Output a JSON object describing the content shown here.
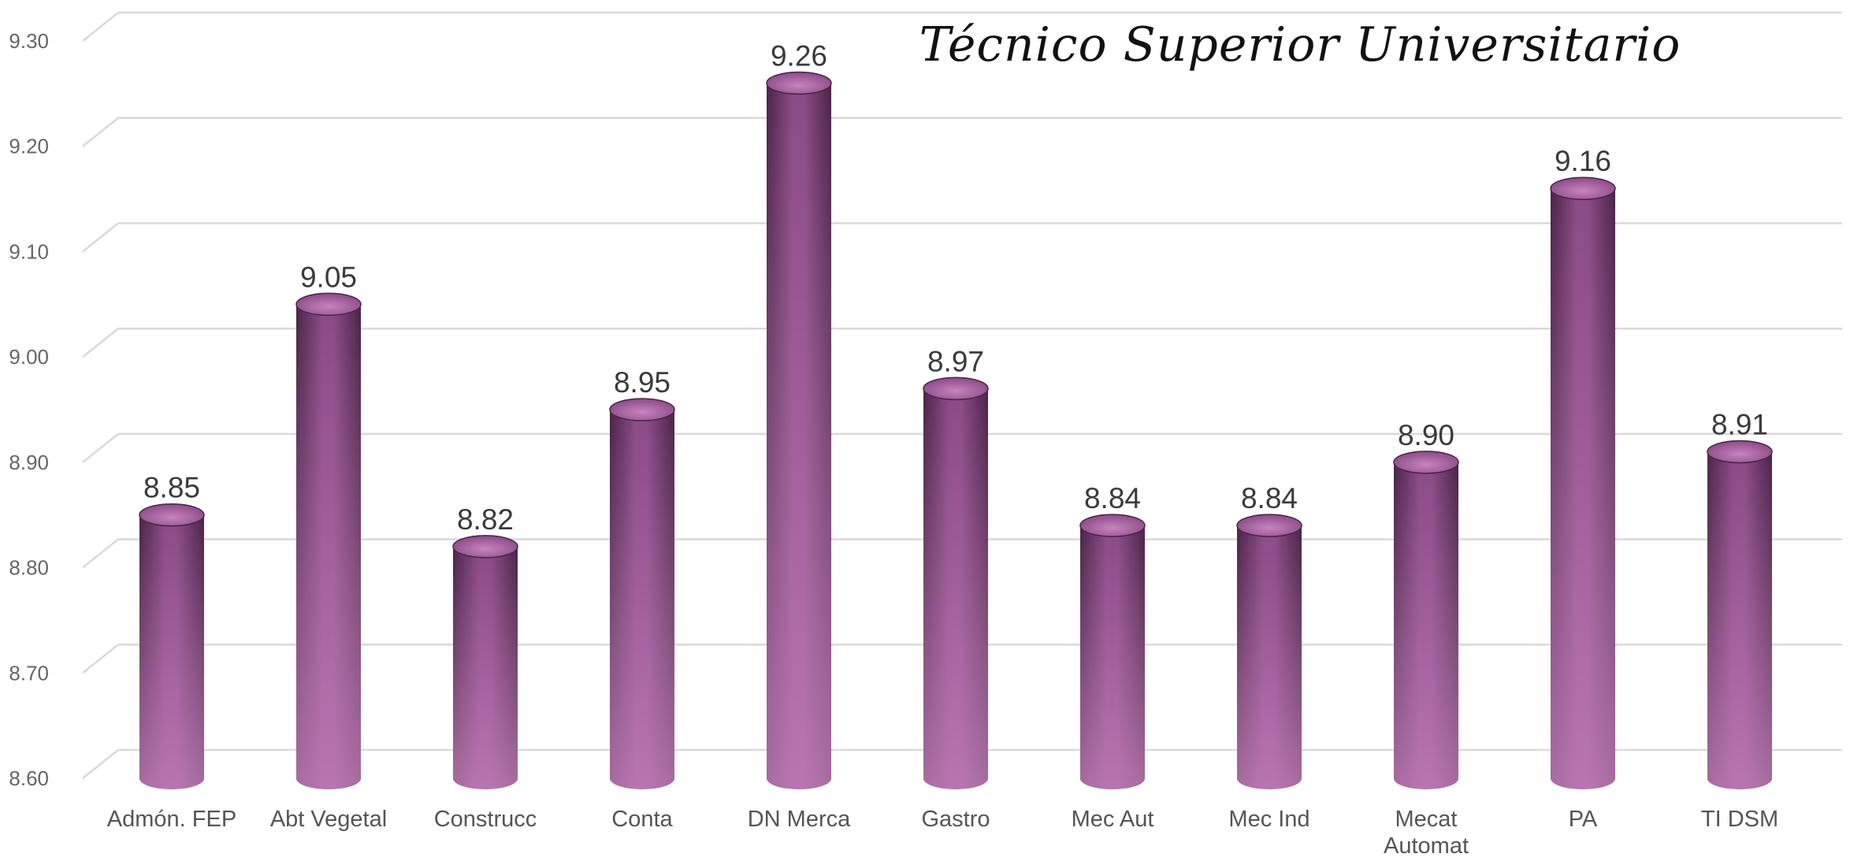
{
  "chart_data": {
    "type": "bar",
    "title": "Técnico Superior Universitario",
    "categories": [
      "Admón. FEP",
      "Abt Vegetal",
      "Construcc",
      "Conta",
      "DN Merca",
      "Gastro",
      "Mec Aut",
      "Mec Ind",
      "Mecat Automat",
      "PA",
      "TI DSM"
    ],
    "values": [
      8.85,
      9.05,
      8.82,
      8.95,
      9.26,
      8.97,
      8.84,
      8.84,
      8.9,
      9.16,
      8.91
    ],
    "data_labels": [
      "8.85",
      "9.05",
      "8.82",
      "8.95",
      "9.26",
      "8.97",
      "8.84",
      "8.84",
      "8.90",
      "9.16",
      "8.91"
    ],
    "yticks": [
      "8.60",
      "8.70",
      "8.80",
      "8.90",
      "9.00",
      "9.10",
      "9.20",
      "9.30"
    ],
    "ylim": [
      8.6,
      9.3
    ],
    "xlabel": "",
    "ylabel": "",
    "grid": true,
    "bar_style": "3d-cylinder",
    "bar_color": "#8a4a86",
    "bar_highlight": "#c784bf",
    "bar_shadow": "#4a2447",
    "grid_color": "#d9d9d9"
  }
}
